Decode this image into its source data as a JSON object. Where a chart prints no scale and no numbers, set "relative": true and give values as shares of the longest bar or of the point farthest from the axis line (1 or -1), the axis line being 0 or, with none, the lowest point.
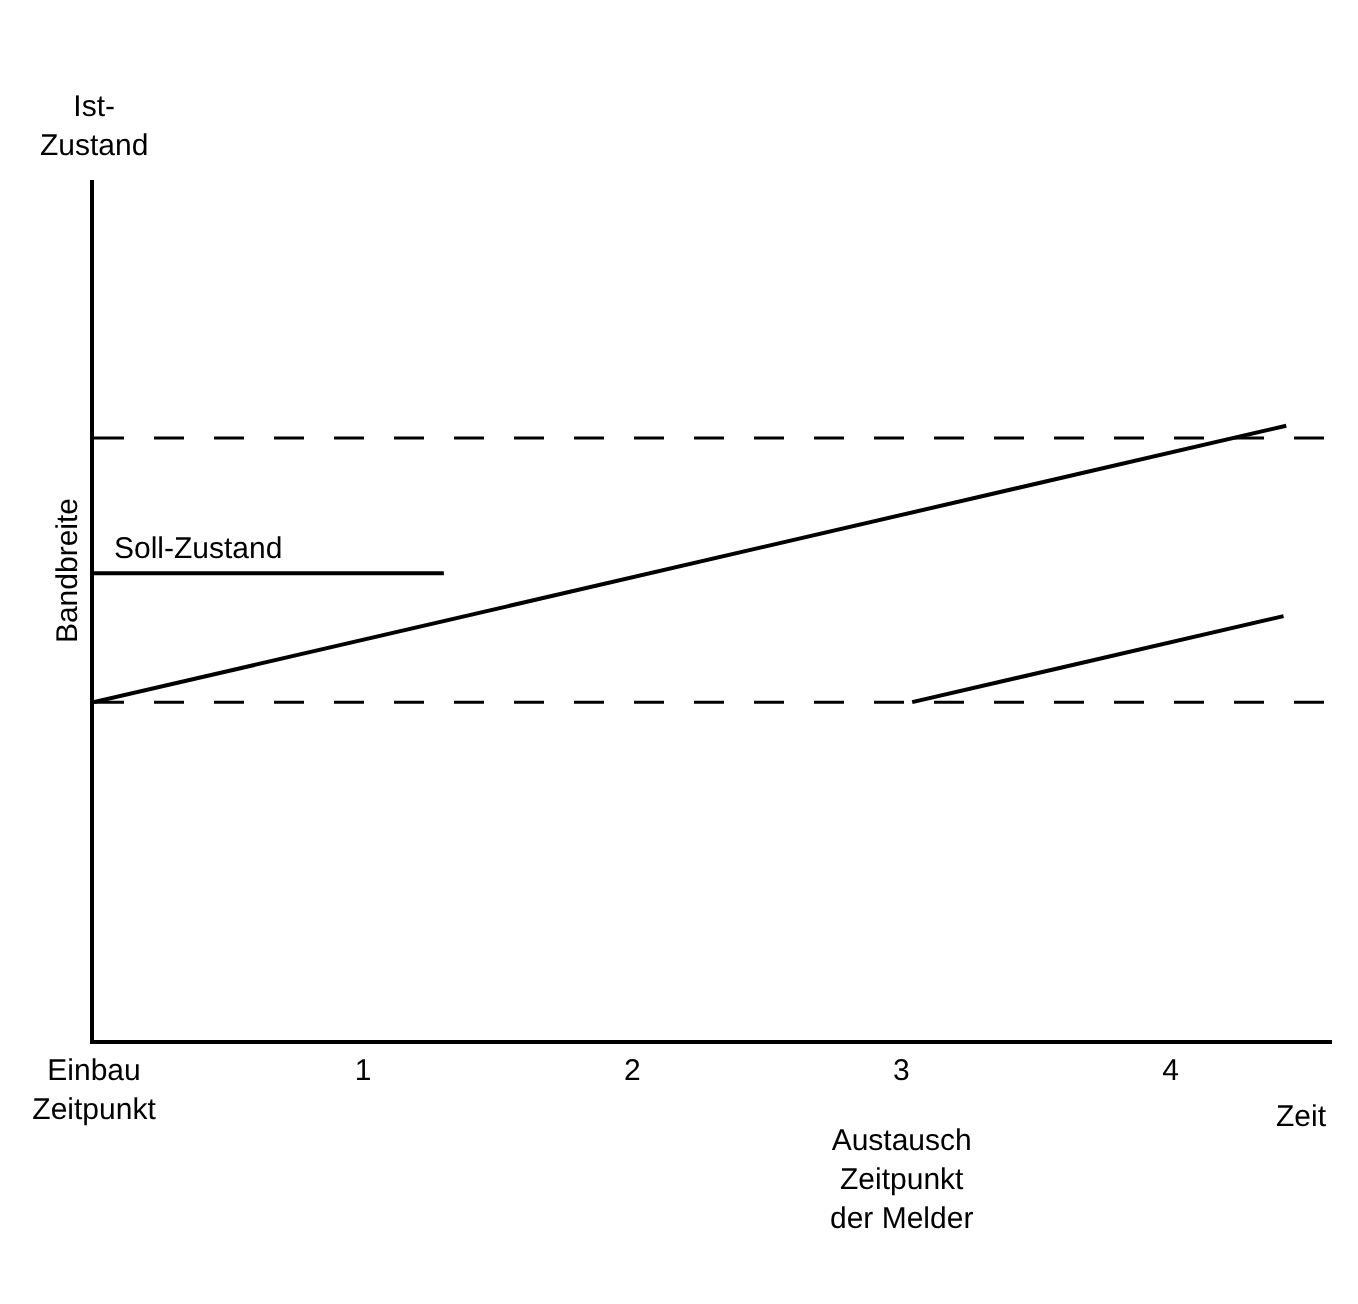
{
  "chart_data": {
    "type": "line",
    "relative": true,
    "xlabel": "Zeit",
    "annotations": [
      "Bandbreite",
      "Austausch\nZeitpunkt\nder Melder",
      "Ist-\nZustand"
    ],
    "xlim": [
      0,
      4.6
    ],
    "xticks": [
      {
        "value": 0,
        "label": "Einbau\nZeitpunkt"
      },
      1,
      2,
      3,
      4
    ],
    "series": [
      {
        "color": "#000000",
        "x": [
          0,
          4.43
        ],
        "values": [
          0.55,
          1.0
        ]
      },
      {
        "color": "#000000",
        "x": [
          3.04,
          4.42
        ],
        "values": [
          0.55,
          0.69
        ]
      },
      {
        "name": "Soll-Zustand",
        "color": "#000000",
        "x": [
          0,
          1.3
        ],
        "values": [
          0.76,
          0.76
        ]
      }
    ],
    "ref_lines": [
      {
        "axis": "y",
        "value": 0.55,
        "line_style": "dashed",
        "color": "#000000"
      },
      {
        "axis": "y",
        "value": 0.98,
        "line_style": "dashed",
        "color": "#000000"
      }
    ],
    "legend": false,
    "marker": "none",
    "line_style": "solid",
    "tick_labels": "x"
  }
}
